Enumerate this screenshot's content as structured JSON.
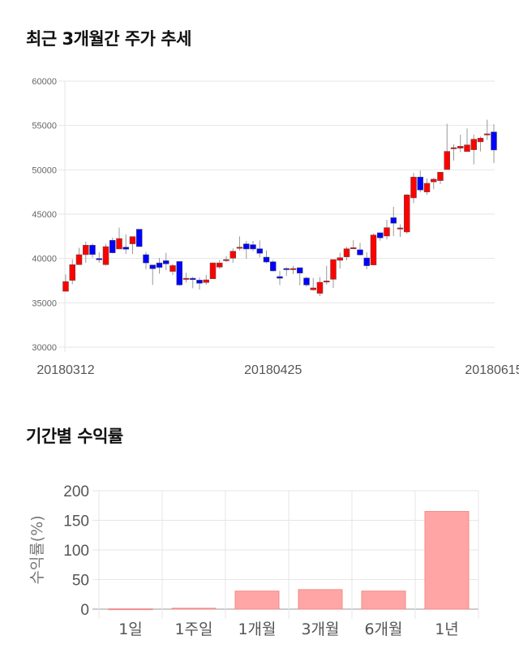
{
  "section1": {
    "title": "최근 3개월간 주가 추세"
  },
  "section2": {
    "title": "기간별 수익률"
  },
  "chart_data": [
    {
      "type": "candlestick",
      "title": "최근 3개월간 주가 추세",
      "ylim": [
        30000,
        60000
      ],
      "yticks": [
        30000,
        35000,
        40000,
        45000,
        50000,
        55000,
        60000
      ],
      "x_tick_labels": [
        "20180312",
        "20180425",
        "20180615"
      ],
      "grid": true,
      "colors": {
        "up": "#ff0000",
        "down": "#0000ff",
        "wick": "#999999"
      },
      "ohlc": [
        [
          36300,
          38200,
          36300,
          37400
        ],
        [
          37530,
          39900,
          37100,
          39300
        ],
        [
          39300,
          41200,
          39300,
          40430
        ],
        [
          40430,
          41900,
          39500,
          41500
        ],
        [
          41500,
          41700,
          40100,
          40450
        ],
        [
          40000,
          40700,
          39500,
          39850
        ],
        [
          39300,
          41650,
          39200,
          41340
        ],
        [
          42050,
          42350,
          40580,
          40640
        ],
        [
          41070,
          43480,
          41070,
          42250
        ],
        [
          41280,
          42700,
          40500,
          41040
        ],
        [
          41650,
          42470,
          40500,
          42470
        ],
        [
          43300,
          43300,
          41340,
          41340
        ],
        [
          40430,
          40730,
          38780,
          39500
        ],
        [
          39270,
          39270,
          37010,
          38840
        ],
        [
          39500,
          40060,
          38290,
          38990
        ],
        [
          39750,
          40640,
          38690,
          39390
        ],
        [
          38540,
          39390,
          38140,
          39200
        ],
        [
          39660,
          39660,
          36920,
          37010
        ],
        [
          37770,
          38380,
          37320,
          37770
        ],
        [
          37770,
          37920,
          36640,
          37620
        ],
        [
          37560,
          37860,
          36490,
          37200
        ],
        [
          37290,
          38140,
          37040,
          37590
        ],
        [
          37710,
          39560,
          37710,
          39500
        ],
        [
          39020,
          39820,
          38810,
          39500
        ],
        [
          39880,
          40270,
          39600,
          39880
        ],
        [
          40030,
          41130,
          39500,
          40820
        ],
        [
          41280,
          42500,
          40910,
          41280
        ],
        [
          41650,
          41980,
          39970,
          41070
        ],
        [
          41560,
          41980,
          40820,
          41070
        ],
        [
          41100,
          42040,
          40120,
          40580
        ],
        [
          40150,
          40910,
          39450,
          39600
        ],
        [
          39630,
          39820,
          38540,
          38600
        ],
        [
          37960,
          38600,
          37010,
          37770
        ],
        [
          38870,
          39020,
          38050,
          38780
        ],
        [
          38750,
          39180,
          38230,
          38870
        ],
        [
          38960,
          38960,
          36980,
          38350
        ],
        [
          37800,
          37960,
          36830,
          37010
        ],
        [
          36460,
          37800,
          36370,
          36680
        ],
        [
          36070,
          37900,
          35760,
          37320
        ],
        [
          37350,
          39180,
          37040,
          37470
        ],
        [
          37650,
          39880,
          36680,
          39880
        ],
        [
          39790,
          40640,
          38870,
          40090
        ],
        [
          40180,
          41310,
          39790,
          41100
        ],
        [
          41220,
          42070,
          41070,
          41220
        ],
        [
          40980,
          41770,
          40340,
          40400
        ],
        [
          40060,
          40700,
          38780,
          39180
        ],
        [
          39270,
          42800,
          39270,
          42650
        ],
        [
          42900,
          42900,
          42010,
          42320
        ],
        [
          42530,
          44360,
          42140,
          43480
        ],
        [
          44600,
          45830,
          42530,
          43970
        ],
        [
          43450,
          43840,
          42440,
          43450
        ],
        [
          42990,
          47260,
          42780,
          47170
        ],
        [
          46830,
          49640,
          46250,
          49180
        ],
        [
          49180,
          49910,
          47470,
          47720
        ],
        [
          47500,
          49030,
          47200,
          48480
        ],
        [
          48630,
          49090,
          47810,
          48940
        ],
        [
          48780,
          49730,
          48390,
          49730
        ],
        [
          50030,
          55190,
          50030,
          52080
        ],
        [
          52500,
          52870,
          51040,
          52500
        ],
        [
          52440,
          53960,
          51990,
          52650
        ],
        [
          52050,
          54660,
          52050,
          52810
        ],
        [
          52260,
          53960,
          50610,
          53450
        ],
        [
          53150,
          53750,
          52080,
          53570
        ],
        [
          54060,
          55650,
          53360,
          54060
        ],
        [
          54270,
          55130,
          50760,
          52230
        ]
      ]
    },
    {
      "type": "bar",
      "title": "기간별 수익률",
      "ylabel": "수익률(%)",
      "categories": [
        "1일",
        "1주일",
        "1개월",
        "3개월",
        "6개월",
        "1년"
      ],
      "values": [
        0.5,
        1.5,
        30.5,
        33,
        30.5,
        165
      ],
      "ylim": [
        0,
        200
      ],
      "yticks": [
        0,
        50,
        100,
        150,
        200
      ],
      "grid": true,
      "colors": {
        "bar": "#ffa5a5",
        "bar_border": "#f08a8a"
      }
    }
  ]
}
